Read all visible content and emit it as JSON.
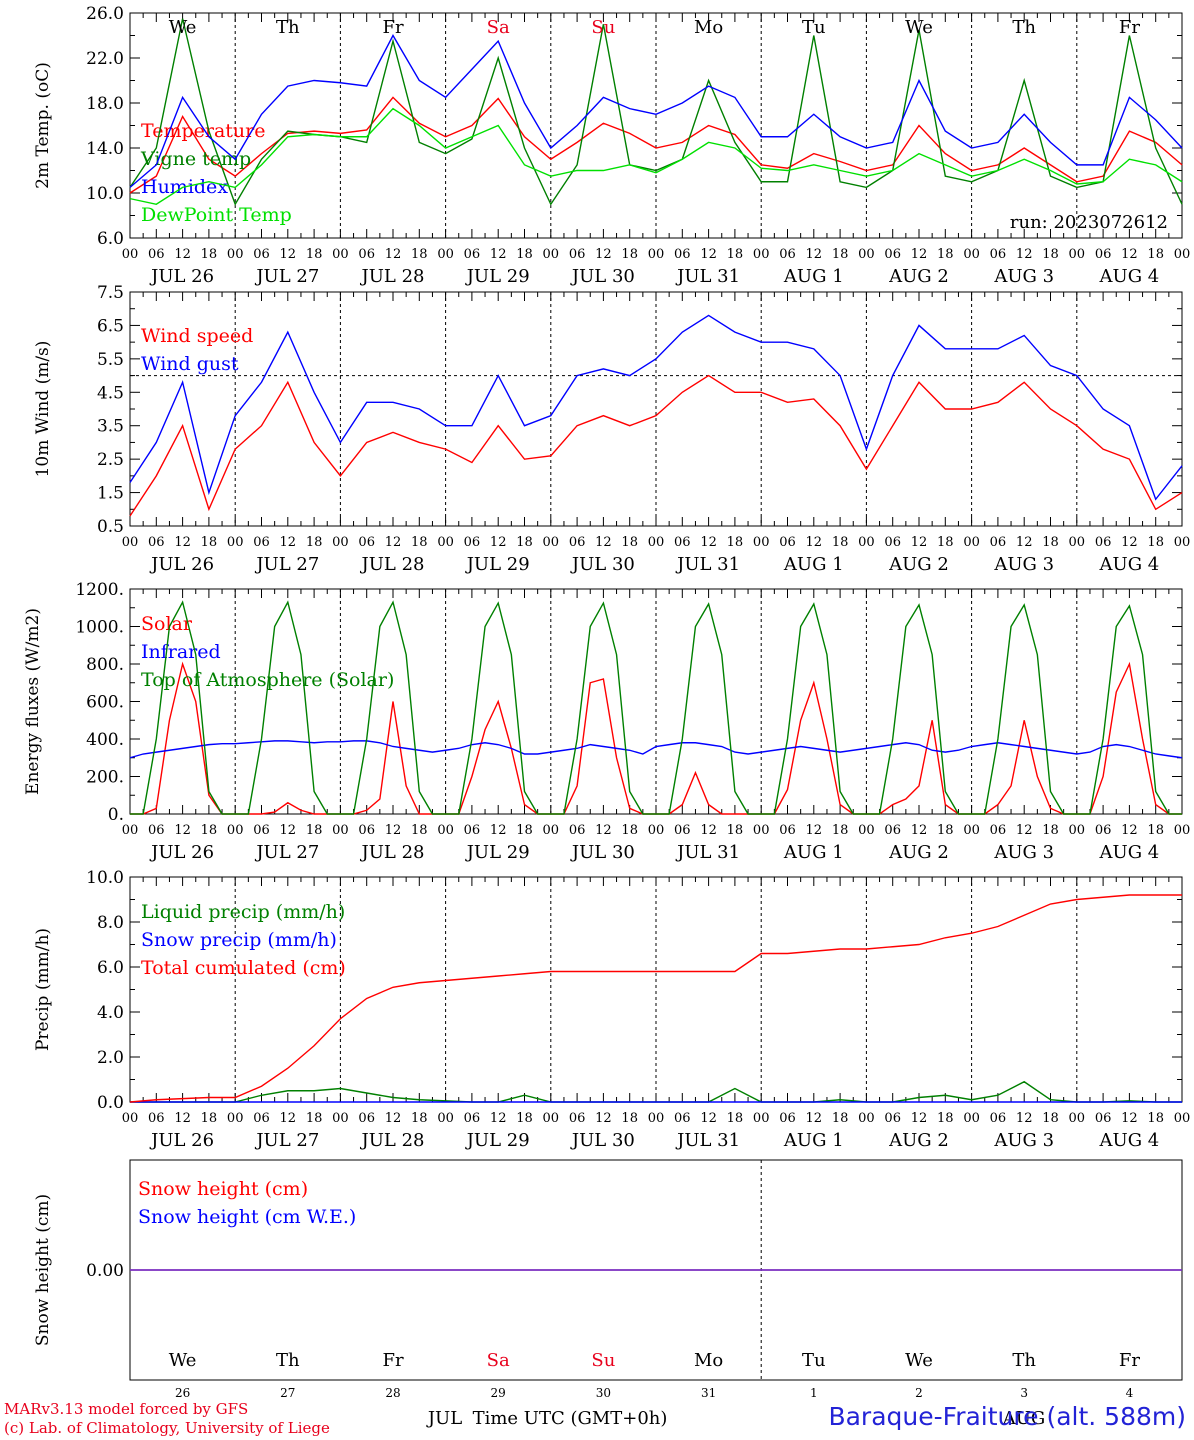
{
  "run_label": "run: 2023072612",
  "x_axis": {
    "hour_ticks": [
      "00",
      "06",
      "12",
      "18"
    ],
    "date_labels": [
      "JUL 26",
      "JUL 27",
      "JUL 28",
      "JUL 29",
      "JUL 30",
      "JUL 31",
      "AUG  1",
      "AUG  2",
      "AUG  3",
      "AUG  4"
    ],
    "weekdays": [
      "We",
      "Th",
      "Fr",
      "Sa",
      "Su",
      "Mo",
      "Tu",
      "We",
      "Th",
      "Fr"
    ],
    "weekday_colors": [
      "#000000",
      "#000000",
      "#000000",
      "#e8001c",
      "#e8001c",
      "#000000",
      "#000000",
      "#000000",
      "#000000",
      "#000000"
    ],
    "day_numbers": [
      "26",
      "27",
      "28",
      "29",
      "30",
      "31",
      "1",
      "2",
      "3",
      "4"
    ],
    "month_labels": [
      "JUL",
      "AUG"
    ],
    "title": "Time UTC (GMT+0h)"
  },
  "footer": {
    "model_line": "MARv3.13 model forced by GFS",
    "lab_line": "(c) Lab. of Climatology, University of Liege",
    "station": "Baraque-Fraiture (alt. 588m)"
  },
  "colors": {
    "red": "#ff0000",
    "blue": "#0000ff",
    "green": "#008000",
    "lightgreen": "#00e000",
    "purple": "#7b2fbf"
  },
  "chart_data": [
    {
      "type": "line",
      "title": "",
      "ylabel": "2m Temp. (oC)",
      "ylim": [
        6,
        26
      ],
      "yticks": [
        "6.0",
        "10.0",
        "14.0",
        "18.0",
        "22.0",
        "26.0"
      ],
      "x": [
        0,
        6,
        12,
        18,
        24,
        30,
        36,
        42,
        48,
        54,
        60,
        66,
        72,
        78,
        84,
        90,
        96,
        102,
        108,
        114,
        120,
        126,
        132,
        138,
        144,
        150,
        156,
        162,
        168,
        174,
        180,
        186,
        192,
        198,
        204,
        210,
        216,
        222,
        228,
        234,
        240
      ],
      "series": [
        {
          "name": "Temperature",
          "color": "#ff0000",
          "values": [
            10.0,
            11.5,
            16.8,
            13.0,
            11.5,
            13.5,
            15.3,
            15.5,
            15.3,
            15.6,
            18.5,
            16.2,
            15.0,
            16.0,
            18.4,
            15.0,
            13.0,
            14.5,
            16.2,
            15.3,
            14.0,
            14.5,
            16.0,
            15.2,
            12.5,
            12.2,
            13.5,
            12.8,
            12.0,
            12.5,
            16.0,
            13.5,
            12.0,
            12.5,
            14.0,
            12.5,
            11.0,
            11.5,
            15.5,
            14.5,
            12.5
          ]
        },
        {
          "name": "Vigne temp",
          "color": "#008000",
          "values": [
            10.5,
            14.0,
            25.5,
            15.5,
            9.0,
            13.0,
            15.5,
            15.2,
            15.0,
            14.5,
            23.5,
            14.5,
            13.5,
            14.8,
            22.0,
            14.0,
            9.0,
            12.5,
            25.0,
            12.5,
            12.0,
            13.0,
            20.0,
            14.5,
            11.0,
            11.0,
            24.0,
            11.0,
            10.5,
            12.0,
            24.5,
            11.5,
            11.0,
            12.0,
            20.0,
            11.5,
            10.5,
            11.0,
            24.0,
            14.0,
            9.0
          ]
        },
        {
          "name": "Humidex",
          "color": "#0000ff",
          "values": [
            10.5,
            12.5,
            18.5,
            15.0,
            13.0,
            17.0,
            19.5,
            20.0,
            19.8,
            19.5,
            24.0,
            20.0,
            18.5,
            21.0,
            23.5,
            18.0,
            14.0,
            16.0,
            18.5,
            17.5,
            17.0,
            18.0,
            19.5,
            18.5,
            15.0,
            15.0,
            17.0,
            15.0,
            14.0,
            14.5,
            20.0,
            15.5,
            14.0,
            14.5,
            17.0,
            14.5,
            12.5,
            12.5,
            18.5,
            16.5,
            14.0
          ]
        },
        {
          "name": "DewPoint Temp",
          "color": "#00e000",
          "values": [
            9.5,
            9.0,
            10.5,
            11.0,
            10.5,
            12.5,
            15.0,
            15.2,
            15.0,
            15.0,
            17.5,
            16.0,
            14.0,
            15.0,
            16.0,
            12.5,
            11.5,
            12.0,
            12.0,
            12.5,
            11.8,
            13.0,
            14.5,
            14.0,
            12.2,
            12.0,
            12.5,
            12.0,
            11.5,
            12.0,
            13.5,
            12.5,
            11.5,
            12.0,
            13.0,
            12.0,
            10.8,
            11.0,
            13.0,
            12.5,
            11.0
          ]
        }
      ],
      "annotations": [
        "run: 2023072612"
      ]
    },
    {
      "type": "line",
      "title": "",
      "ylabel": "10m Wind (m/s)",
      "ylim": [
        0.5,
        7.5
      ],
      "yticks": [
        "0.5",
        "1.5",
        "2.5",
        "3.5",
        "4.5",
        "5.5",
        "6.5",
        "7.5"
      ],
      "reference_line": 5.0,
      "x": [
        0,
        6,
        12,
        18,
        24,
        30,
        36,
        42,
        48,
        54,
        60,
        66,
        72,
        78,
        84,
        90,
        96,
        102,
        108,
        114,
        120,
        126,
        132,
        138,
        144,
        150,
        156,
        162,
        168,
        174,
        180,
        186,
        192,
        198,
        204,
        210,
        216,
        222,
        228,
        234,
        240
      ],
      "series": [
        {
          "name": "Wind speed",
          "color": "#ff0000",
          "values": [
            0.8,
            2.0,
            3.5,
            1.0,
            2.8,
            3.5,
            4.8,
            3.0,
            2.0,
            3.0,
            3.3,
            3.0,
            2.8,
            2.4,
            3.5,
            2.5,
            2.6,
            3.5,
            3.8,
            3.5,
            3.8,
            4.5,
            5.0,
            4.5,
            4.5,
            4.2,
            4.3,
            3.5,
            2.2,
            3.5,
            4.8,
            4.0,
            4.0,
            4.2,
            4.8,
            4.0,
            3.5,
            2.8,
            2.5,
            1.0,
            1.5
          ]
        },
        {
          "name": "Wind gust",
          "color": "#0000ff",
          "values": [
            1.8,
            3.0,
            4.8,
            1.5,
            3.8,
            4.8,
            6.3,
            4.5,
            3.0,
            4.2,
            4.2,
            4.0,
            3.5,
            3.5,
            5.0,
            3.5,
            3.8,
            5.0,
            5.2,
            5.0,
            5.5,
            6.3,
            6.8,
            6.3,
            6.0,
            6.0,
            5.8,
            5.0,
            2.8,
            5.0,
            6.5,
            5.8,
            5.8,
            5.8,
            6.2,
            5.3,
            5.0,
            4.0,
            3.5,
            1.3,
            2.3
          ]
        }
      ]
    },
    {
      "type": "line",
      "title": "",
      "ylabel": "Energy fluxes (W/m2)",
      "ylim": [
        0,
        1200
      ],
      "yticks": [
        "0.",
        "200.",
        "400.",
        "600.",
        "800.",
        "1000.",
        "1200."
      ],
      "x": [
        0,
        3,
        6,
        9,
        12,
        15,
        18,
        21,
        24,
        27,
        30,
        33,
        36,
        39,
        42,
        45,
        48,
        51,
        54,
        57,
        60,
        63,
        66,
        69,
        72,
        75,
        78,
        81,
        84,
        87,
        90,
        93,
        96,
        99,
        102,
        105,
        108,
        111,
        114,
        117,
        120,
        123,
        126,
        129,
        132,
        135,
        138,
        141,
        144,
        147,
        150,
        153,
        156,
        159,
        162,
        165,
        168,
        171,
        174,
        177,
        180,
        183,
        186,
        189,
        192,
        195,
        198,
        201,
        204,
        207,
        210,
        213,
        216,
        219,
        222,
        225,
        228,
        231,
        234,
        237,
        240
      ],
      "series": [
        {
          "name": "Solar",
          "color": "#ff0000",
          "values": [
            0,
            0,
            30,
            500,
            800,
            600,
            100,
            0,
            0,
            0,
            0,
            10,
            60,
            20,
            0,
            0,
            0,
            0,
            20,
            80,
            600,
            150,
            0,
            0,
            0,
            0,
            200,
            450,
            600,
            350,
            50,
            0,
            0,
            0,
            150,
            700,
            720,
            300,
            30,
            0,
            0,
            0,
            50,
            220,
            50,
            0,
            0,
            0,
            0,
            0,
            130,
            500,
            700,
            400,
            50,
            0,
            0,
            0,
            50,
            80,
            150,
            500,
            50,
            0,
            0,
            0,
            50,
            150,
            500,
            200,
            30,
            0,
            0,
            0,
            200,
            650,
            800,
            400,
            50,
            0,
            0
          ]
        },
        {
          "name": "Infrared",
          "color": "#0000ff",
          "values": [
            300,
            320,
            330,
            340,
            350,
            360,
            370,
            375,
            375,
            380,
            385,
            390,
            390,
            385,
            380,
            385,
            385,
            390,
            390,
            380,
            360,
            350,
            340,
            330,
            340,
            350,
            370,
            380,
            370,
            350,
            320,
            320,
            330,
            340,
            350,
            370,
            360,
            350,
            340,
            320,
            360,
            370,
            380,
            380,
            370,
            360,
            330,
            320,
            330,
            340,
            350,
            360,
            350,
            340,
            330,
            340,
            350,
            360,
            370,
            380,
            370,
            340,
            330,
            340,
            360,
            370,
            380,
            370,
            360,
            350,
            340,
            330,
            320,
            330,
            360,
            370,
            360,
            340,
            320,
            310,
            300
          ]
        },
        {
          "name": "Top of Atmosphere (Solar)",
          "color": "#008000",
          "values": [
            0,
            0,
            400,
            1000,
            1130,
            850,
            120,
            0,
            0,
            0,
            400,
            1000,
            1130,
            850,
            120,
            0,
            0,
            0,
            400,
            1000,
            1130,
            850,
            120,
            0,
            0,
            0,
            400,
            1000,
            1125,
            850,
            120,
            0,
            0,
            0,
            400,
            1000,
            1125,
            850,
            120,
            0,
            0,
            0,
            400,
            1000,
            1120,
            850,
            120,
            0,
            0,
            0,
            400,
            1000,
            1120,
            850,
            120,
            0,
            0,
            0,
            400,
            1000,
            1115,
            850,
            120,
            0,
            0,
            0,
            400,
            1000,
            1115,
            850,
            120,
            0,
            0,
            0,
            400,
            1000,
            1110,
            850,
            120,
            0,
            0
          ]
        }
      ]
    },
    {
      "type": "line",
      "title": "",
      "ylabel": "Precip (mm/h)",
      "ylim": [
        0,
        10
      ],
      "yticks": [
        "0.0",
        "2.0",
        "4.0",
        "6.0",
        "8.0",
        "10.0"
      ],
      "x": [
        0,
        6,
        12,
        18,
        24,
        30,
        36,
        42,
        48,
        54,
        60,
        66,
        72,
        78,
        84,
        90,
        96,
        102,
        108,
        114,
        120,
        126,
        132,
        138,
        144,
        150,
        156,
        162,
        168,
        174,
        180,
        186,
        192,
        198,
        204,
        210,
        216,
        222,
        228,
        234,
        240
      ],
      "series": [
        {
          "name": "Liquid precip (mm/h)",
          "color": "#008000",
          "values": [
            0,
            0,
            0,
            0,
            0,
            0.3,
            0.5,
            0.5,
            0.6,
            0.4,
            0.2,
            0.1,
            0.05,
            0,
            0,
            0.3,
            0,
            0,
            0,
            0,
            0,
            0,
            0,
            0.6,
            0,
            0,
            0,
            0.1,
            0,
            0,
            0.2,
            0.3,
            0.1,
            0.3,
            0.9,
            0.1,
            0,
            0,
            0.05,
            0,
            0
          ]
        },
        {
          "name": "Snow precip (mm/h)",
          "color": "#0000ff",
          "values": [
            0,
            0,
            0,
            0,
            0,
            0,
            0,
            0,
            0,
            0,
            0,
            0,
            0,
            0,
            0,
            0,
            0,
            0,
            0,
            0,
            0,
            0,
            0,
            0,
            0,
            0,
            0,
            0,
            0,
            0,
            0,
            0,
            0,
            0,
            0,
            0,
            0,
            0,
            0,
            0,
            0
          ]
        },
        {
          "name": "Total cumulated (cm)",
          "color": "#ff0000",
          "values": [
            0,
            0.1,
            0.15,
            0.2,
            0.2,
            0.7,
            1.5,
            2.5,
            3.7,
            4.6,
            5.1,
            5.3,
            5.4,
            5.5,
            5.6,
            5.7,
            5.8,
            5.8,
            5.8,
            5.8,
            5.8,
            5.8,
            5.8,
            5.8,
            6.6,
            6.6,
            6.7,
            6.8,
            6.8,
            6.9,
            7.0,
            7.3,
            7.5,
            7.8,
            8.3,
            8.8,
            9.0,
            9.1,
            9.2,
            9.2,
            9.2
          ]
        }
      ]
    },
    {
      "type": "line",
      "title": "",
      "ylabel": "Snow height (cm)",
      "yticks": [
        "0.00"
      ],
      "x": [
        0,
        240
      ],
      "series": [
        {
          "name": "Snow height (cm)",
          "color": "#ff0000",
          "values": [
            0,
            0
          ]
        },
        {
          "name": "Snow height (cm W.E.)",
          "color": "#0000ff",
          "values": [
            0,
            0
          ]
        }
      ]
    }
  ]
}
